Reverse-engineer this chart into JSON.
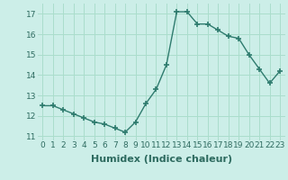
{
  "x": [
    0,
    1,
    2,
    3,
    4,
    5,
    6,
    7,
    8,
    9,
    10,
    11,
    12,
    13,
    14,
    15,
    16,
    17,
    18,
    19,
    20,
    21,
    22,
    23
  ],
  "y": [
    12.5,
    12.5,
    12.3,
    12.1,
    11.9,
    11.7,
    11.6,
    11.4,
    11.2,
    11.7,
    12.6,
    13.3,
    14.5,
    17.1,
    17.1,
    16.5,
    16.5,
    16.2,
    15.9,
    15.8,
    15.0,
    14.3,
    13.6,
    14.2
  ],
  "line_color": "#2e7b6e",
  "marker": "+",
  "marker_size": 4,
  "bg_color": "#cceee8",
  "grid_color": "#aaddcc",
  "xlabel": "Humidex (Indice chaleur)",
  "xlim": [
    -0.5,
    23.5
  ],
  "ylim": [
    10.8,
    17.5
  ],
  "yticks": [
    11,
    12,
    13,
    14,
    15,
    16,
    17
  ],
  "xticks": [
    0,
    1,
    2,
    3,
    4,
    5,
    6,
    7,
    8,
    9,
    10,
    11,
    12,
    13,
    14,
    15,
    16,
    17,
    18,
    19,
    20,
    21,
    22,
    23
  ],
  "xtick_labels": [
    "0",
    "1",
    "2",
    "3",
    "4",
    "5",
    "6",
    "7",
    "8",
    "9",
    "10",
    "11",
    "12",
    "13",
    "14",
    "15",
    "16",
    "17",
    "18",
    "19",
    "20",
    "21",
    "22",
    "23"
  ],
  "font_size": 6.5,
  "label_font_size": 8.0,
  "tick_color": "#2e6b60",
  "label_color": "#2e6b60"
}
